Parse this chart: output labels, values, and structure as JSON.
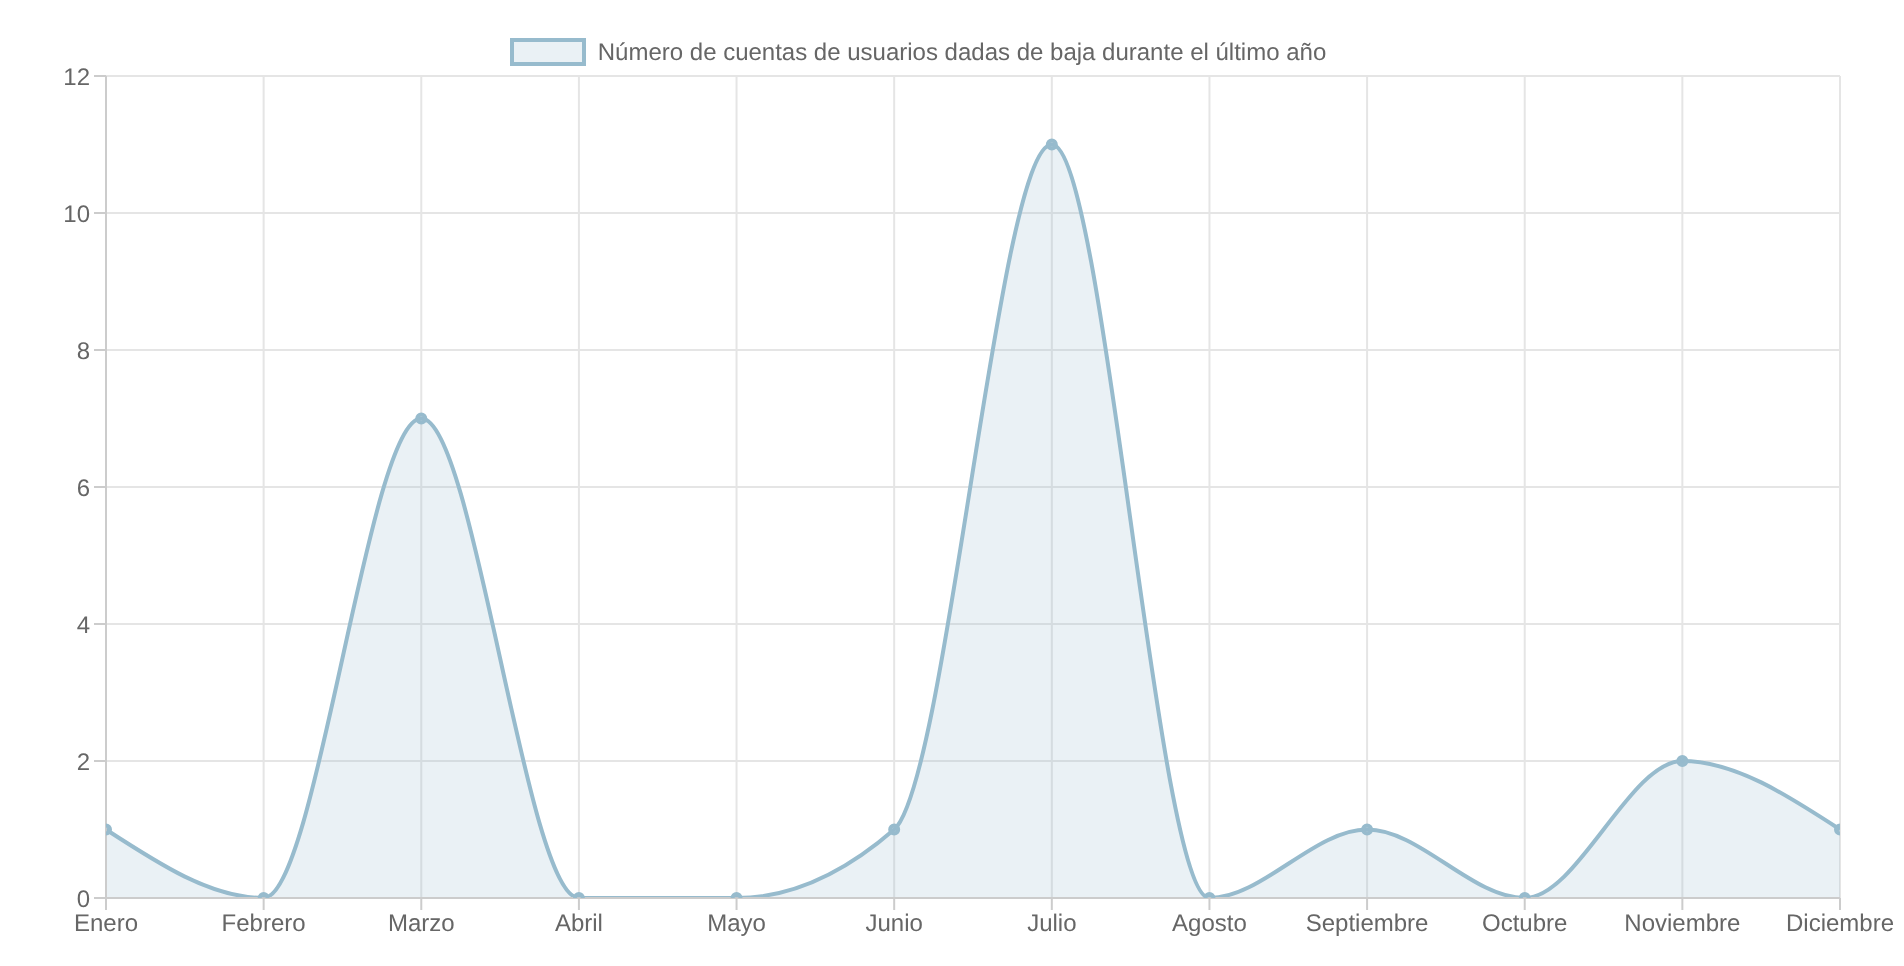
{
  "chart_data": {
    "type": "area",
    "categories": [
      "Enero",
      "Febrero",
      "Marzo",
      "Abril",
      "Mayo",
      "Junio",
      "Julio",
      "Agosto",
      "Septiembre",
      "Octubre",
      "Noviembre",
      "Diciembre"
    ],
    "series": [
      {
        "name": "Número de cuentas de usuarios dadas de baja durante el último año",
        "color": "#97bbcd",
        "values": [
          1,
          0,
          7,
          0,
          0,
          1,
          11,
          0,
          1,
          0,
          2,
          1
        ]
      }
    ],
    "ylim": [
      0,
      12
    ],
    "yticks": [
      0,
      2,
      4,
      6,
      8,
      10,
      12
    ],
    "grid": true,
    "legend": "top",
    "marker": "circle"
  }
}
